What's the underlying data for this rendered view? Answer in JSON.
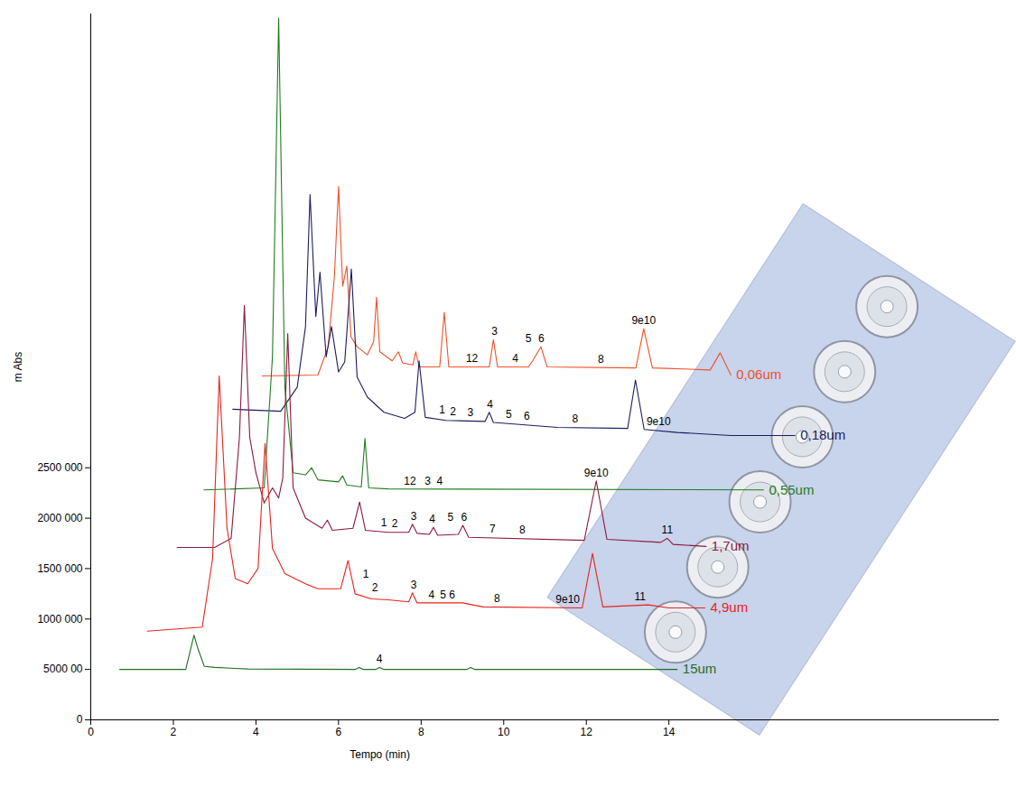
{
  "chart_data": {
    "type": "line",
    "x_label": "Tempo (min)",
    "y_label": "m Abs",
    "xlim": [
      0,
      22
    ],
    "xticks": [
      0,
      2,
      4,
      6,
      8,
      10,
      12,
      14
    ],
    "ylim": [
      0,
      7000000
    ],
    "yticks": [
      0,
      {
        "value": 500000,
        "label": "5000 00"
      },
      {
        "value": 1000000,
        "label": "1000 000"
      },
      {
        "value": 1500000,
        "label": "1500 000"
      },
      {
        "value": 2000000,
        "label": "2000 000"
      },
      {
        "value": 2500000,
        "label": "2500 000"
      }
    ],
    "grid": false,
    "series": [
      {
        "name": "0,06um",
        "color": "#f0502a",
        "x": [
          4.15,
          5.5,
          5.75,
          5.9,
          6.0,
          6.1,
          6.2,
          6.3,
          6.45,
          6.7,
          6.85,
          6.92,
          7.0,
          7.3,
          7.45,
          7.55,
          7.8,
          7.87,
          7.95,
          8.45,
          8.56,
          8.67,
          9.65,
          9.75,
          9.85,
          10.6,
          10.7,
          10.9,
          11.05,
          13.2,
          13.39,
          13.6,
          15.0,
          15.24,
          15.5
        ],
        "values": [
          3410000,
          3420000,
          3700000,
          4400000,
          5290000,
          4300000,
          4500000,
          3800000,
          3700000,
          3620000,
          3750000,
          4190000,
          3650000,
          3560000,
          3650000,
          3540000,
          3520000,
          3650000,
          3500000,
          3500000,
          4040000,
          3500000,
          3500000,
          3770000,
          3500000,
          3500000,
          3560000,
          3700000,
          3500000,
          3490000,
          3880000,
          3490000,
          3470000,
          3640000,
          3420000
        ],
        "peaks": [
          {
            "label": "12",
            "x": 9.23
          },
          {
            "label": "3",
            "x": 9.78
          },
          {
            "label": "4",
            "x": 10.28
          },
          {
            "label": "5",
            "x": 10.6
          },
          {
            "label": "6",
            "x": 10.91
          },
          {
            "label": "8",
            "x": 12.35
          },
          {
            "label": "9e10",
            "x": 13.39
          }
        ]
      },
      {
        "name": "0,18um",
        "color": "#1c1c60",
        "x": [
          3.44,
          4.6,
          5.0,
          5.2,
          5.31,
          5.45,
          5.55,
          5.7,
          5.83,
          6.0,
          6.15,
          6.31,
          6.45,
          6.7,
          7.1,
          7.6,
          7.85,
          7.95,
          8.1,
          8.6,
          9.55,
          9.65,
          9.75,
          11.3,
          13.0,
          13.19,
          13.4,
          14.2,
          15.5,
          17.05
        ],
        "values": [
          3080000,
          3060000,
          3300000,
          3900000,
          5210000,
          4000000,
          4440000,
          3600000,
          3900000,
          3450000,
          3550000,
          4470000,
          3400000,
          3200000,
          3050000,
          2990000,
          3050000,
          3560000,
          3000000,
          2970000,
          2960000,
          3050000,
          2950000,
          2900000,
          2890000,
          3370000,
          2880000,
          2850000,
          2820000,
          2820000
        ],
        "peaks": [
          {
            "label": "1",
            "x": 8.51
          },
          {
            "label": "2",
            "x": 8.77
          },
          {
            "label": "3",
            "x": 9.19
          },
          {
            "label": "4",
            "x": 9.67
          },
          {
            "label": "5",
            "x": 10.12
          },
          {
            "label": "6",
            "x": 10.56
          },
          {
            "label": "8",
            "x": 11.73
          },
          {
            "label": "9e10",
            "x": 13.75
          }
        ]
      },
      {
        "name": "0,55um",
        "color": "#1f7d1f",
        "x": [
          2.74,
          4.2,
          4.4,
          4.55,
          4.7,
          4.9,
          5.2,
          5.35,
          5.5,
          6.0,
          6.1,
          6.2,
          6.55,
          6.64,
          6.73,
          7.2,
          16.29
        ],
        "values": [
          2280000,
          2300000,
          3600000,
          6960000,
          3300000,
          2450000,
          2430000,
          2500000,
          2380000,
          2360000,
          2420000,
          2330000,
          2310000,
          2790000,
          2300000,
          2290000,
          2280000
        ],
        "peaks": [
          {
            "label": "12",
            "x": 7.73
          },
          {
            "label": "3",
            "x": 8.16
          },
          {
            "label": "4",
            "x": 8.45
          }
        ]
      },
      {
        "name": "1,7um",
        "color": "#8c1a3c",
        "x": [
          2.09,
          3.0,
          3.4,
          3.6,
          3.72,
          3.85,
          4.0,
          4.2,
          4.4,
          4.55,
          4.65,
          4.77,
          4.9,
          5.2,
          5.6,
          5.73,
          5.85,
          6.35,
          6.51,
          6.65,
          7.2,
          7.7,
          7.79,
          7.9,
          8.2,
          8.3,
          8.4,
          8.9,
          9.01,
          9.15,
          11.95,
          12.24,
          12.5,
          13.8,
          13.96,
          14.1,
          14.9
        ],
        "values": [
          1710000,
          1710000,
          1800000,
          2800000,
          4110000,
          2800000,
          2450000,
          2150000,
          2300000,
          2200000,
          2400000,
          3830000,
          2300000,
          2000000,
          1900000,
          1980000,
          1880000,
          1900000,
          2160000,
          1880000,
          1860000,
          1860000,
          1940000,
          1850000,
          1840000,
          1910000,
          1830000,
          1840000,
          1930000,
          1810000,
          1780000,
          2370000,
          1790000,
          1760000,
          1800000,
          1740000,
          1720000
        ],
        "peaks": [
          {
            "label": "1",
            "x": 7.1
          },
          {
            "label": "2",
            "x": 7.36
          },
          {
            "label": "3",
            "x": 7.82
          },
          {
            "label": "4",
            "x": 8.27
          },
          {
            "label": "5",
            "x": 8.71
          },
          {
            "label": "6",
            "x": 9.04
          },
          {
            "label": "7",
            "x": 9.73
          },
          {
            "label": "8",
            "x": 10.45
          },
          {
            "label": "9e10",
            "x": 12.24
          },
          {
            "label": "11",
            "x": 13.96
          }
        ]
      },
      {
        "name": "4,9um",
        "color": "#e8231c",
        "x": [
          1.37,
          2.7,
          2.95,
          3.11,
          3.3,
          3.5,
          3.8,
          4.05,
          4.22,
          4.4,
          4.7,
          5.2,
          5.5,
          6.05,
          6.23,
          6.4,
          6.8,
          7.2,
          7.7,
          7.79,
          7.9,
          9.0,
          9.5,
          11.9,
          12.15,
          12.4,
          13.5,
          14.0,
          14.87
        ],
        "values": [
          880000,
          920000,
          1600000,
          3410000,
          1900000,
          1400000,
          1350000,
          1500000,
          2740000,
          1700000,
          1450000,
          1350000,
          1300000,
          1300000,
          1580000,
          1250000,
          1200000,
          1190000,
          1170000,
          1260000,
          1160000,
          1160000,
          1120000,
          1110000,
          1650000,
          1120000,
          1140000,
          1110000,
          1110000
        ],
        "peaks": [
          {
            "label": "1",
            "x": 6.66
          },
          {
            "label": "2",
            "x": 6.88
          },
          {
            "label": "3",
            "x": 7.82
          },
          {
            "label": "4",
            "x": 8.25
          },
          {
            "label": "5",
            "x": 8.53
          },
          {
            "label": "6",
            "x": 8.75
          },
          {
            "label": "8",
            "x": 9.84
          },
          {
            "label": "9e10",
            "x": 11.55
          },
          {
            "label": "11",
            "x": 13.3
          }
        ]
      },
      {
        "name": "15um",
        "color": "#1f6f1f",
        "x": [
          0.7,
          2.3,
          2.5,
          2.6,
          2.75,
          3.0,
          3.5,
          3.8,
          6.4,
          6.5,
          6.6,
          6.9,
          6.99,
          7.1,
          9.1,
          9.2,
          9.3,
          14.2
        ],
        "values": [
          500000,
          500000,
          840000,
          700000,
          530000,
          520000,
          510000,
          505000,
          500000,
          520000,
          500000,
          500000,
          520000,
          500000,
          500000,
          520000,
          500000,
          500000
        ],
        "peaks": [
          {
            "label": "4",
            "x": 6.99
          }
        ]
      }
    ]
  }
}
